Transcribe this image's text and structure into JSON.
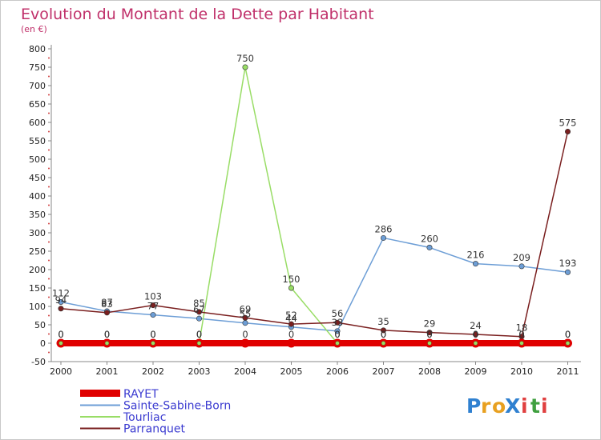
{
  "chart_data": {
    "type": "line",
    "title": "Evolution du Montant de la Dette par Habitant",
    "subtitle": "(en €)",
    "xlabel": "",
    "ylabel": "",
    "x": [
      "2000",
      "2001",
      "2002",
      "2003",
      "2004",
      "2005",
      "2006",
      "2007",
      "2008",
      "2009",
      "2010",
      "2011"
    ],
    "ylim": [
      -50,
      800
    ],
    "yticks": [
      -50,
      0,
      50,
      100,
      150,
      200,
      250,
      300,
      350,
      400,
      450,
      500,
      550,
      600,
      650,
      700,
      750,
      800
    ],
    "grid": false,
    "legend_position": "bottom-left",
    "series": [
      {
        "name": "RAYET",
        "color": "#e00000",
        "values": [
          0,
          0,
          0,
          0,
          0,
          0,
          0,
          0,
          0,
          0,
          0,
          0
        ],
        "labels": [
          "0",
          "0",
          "0",
          "0",
          "0",
          "0",
          "0",
          "0",
          "0",
          "0",
          "0",
          "0"
        ]
      },
      {
        "name": "Sainte-Sabine-Born",
        "color": "#6d9ed6",
        "values": [
          112,
          87,
          77,
          67,
          55,
          44,
          33,
          286,
          260,
          216,
          209,
          193
        ],
        "labels": [
          "112",
          "87",
          "77",
          "67",
          "55",
          "44",
          "33",
          "286",
          "260",
          "216",
          "209",
          "193"
        ]
      },
      {
        "name": "Tourliac",
        "color": "#99dd66",
        "values": [
          0,
          0,
          0,
          0,
          750,
          150,
          0,
          0,
          0,
          0,
          0,
          0
        ],
        "labels": [
          "0",
          "0",
          "0",
          "0",
          "750",
          "150",
          "0",
          "0",
          "0",
          "0",
          "0",
          "0"
        ]
      },
      {
        "name": "Parranquet",
        "color": "#7a1f1f",
        "values": [
          94,
          83,
          103,
          85,
          69,
          52,
          56,
          35,
          29,
          24,
          18,
          575
        ],
        "labels": [
          "94",
          "83",
          "103",
          "85",
          "69",
          "52",
          "56",
          "35",
          "29",
          "24",
          "18",
          "575"
        ]
      }
    ]
  },
  "logo": {
    "text": "ProXiti",
    "letters": [
      "P",
      "r",
      "o",
      "X",
      "i",
      "t",
      "i"
    ],
    "colors": [
      "#2f80d0",
      "#e8a020",
      "#e8a020",
      "#2f80d0",
      "#e04040",
      "#40a040",
      "#e04040"
    ]
  }
}
